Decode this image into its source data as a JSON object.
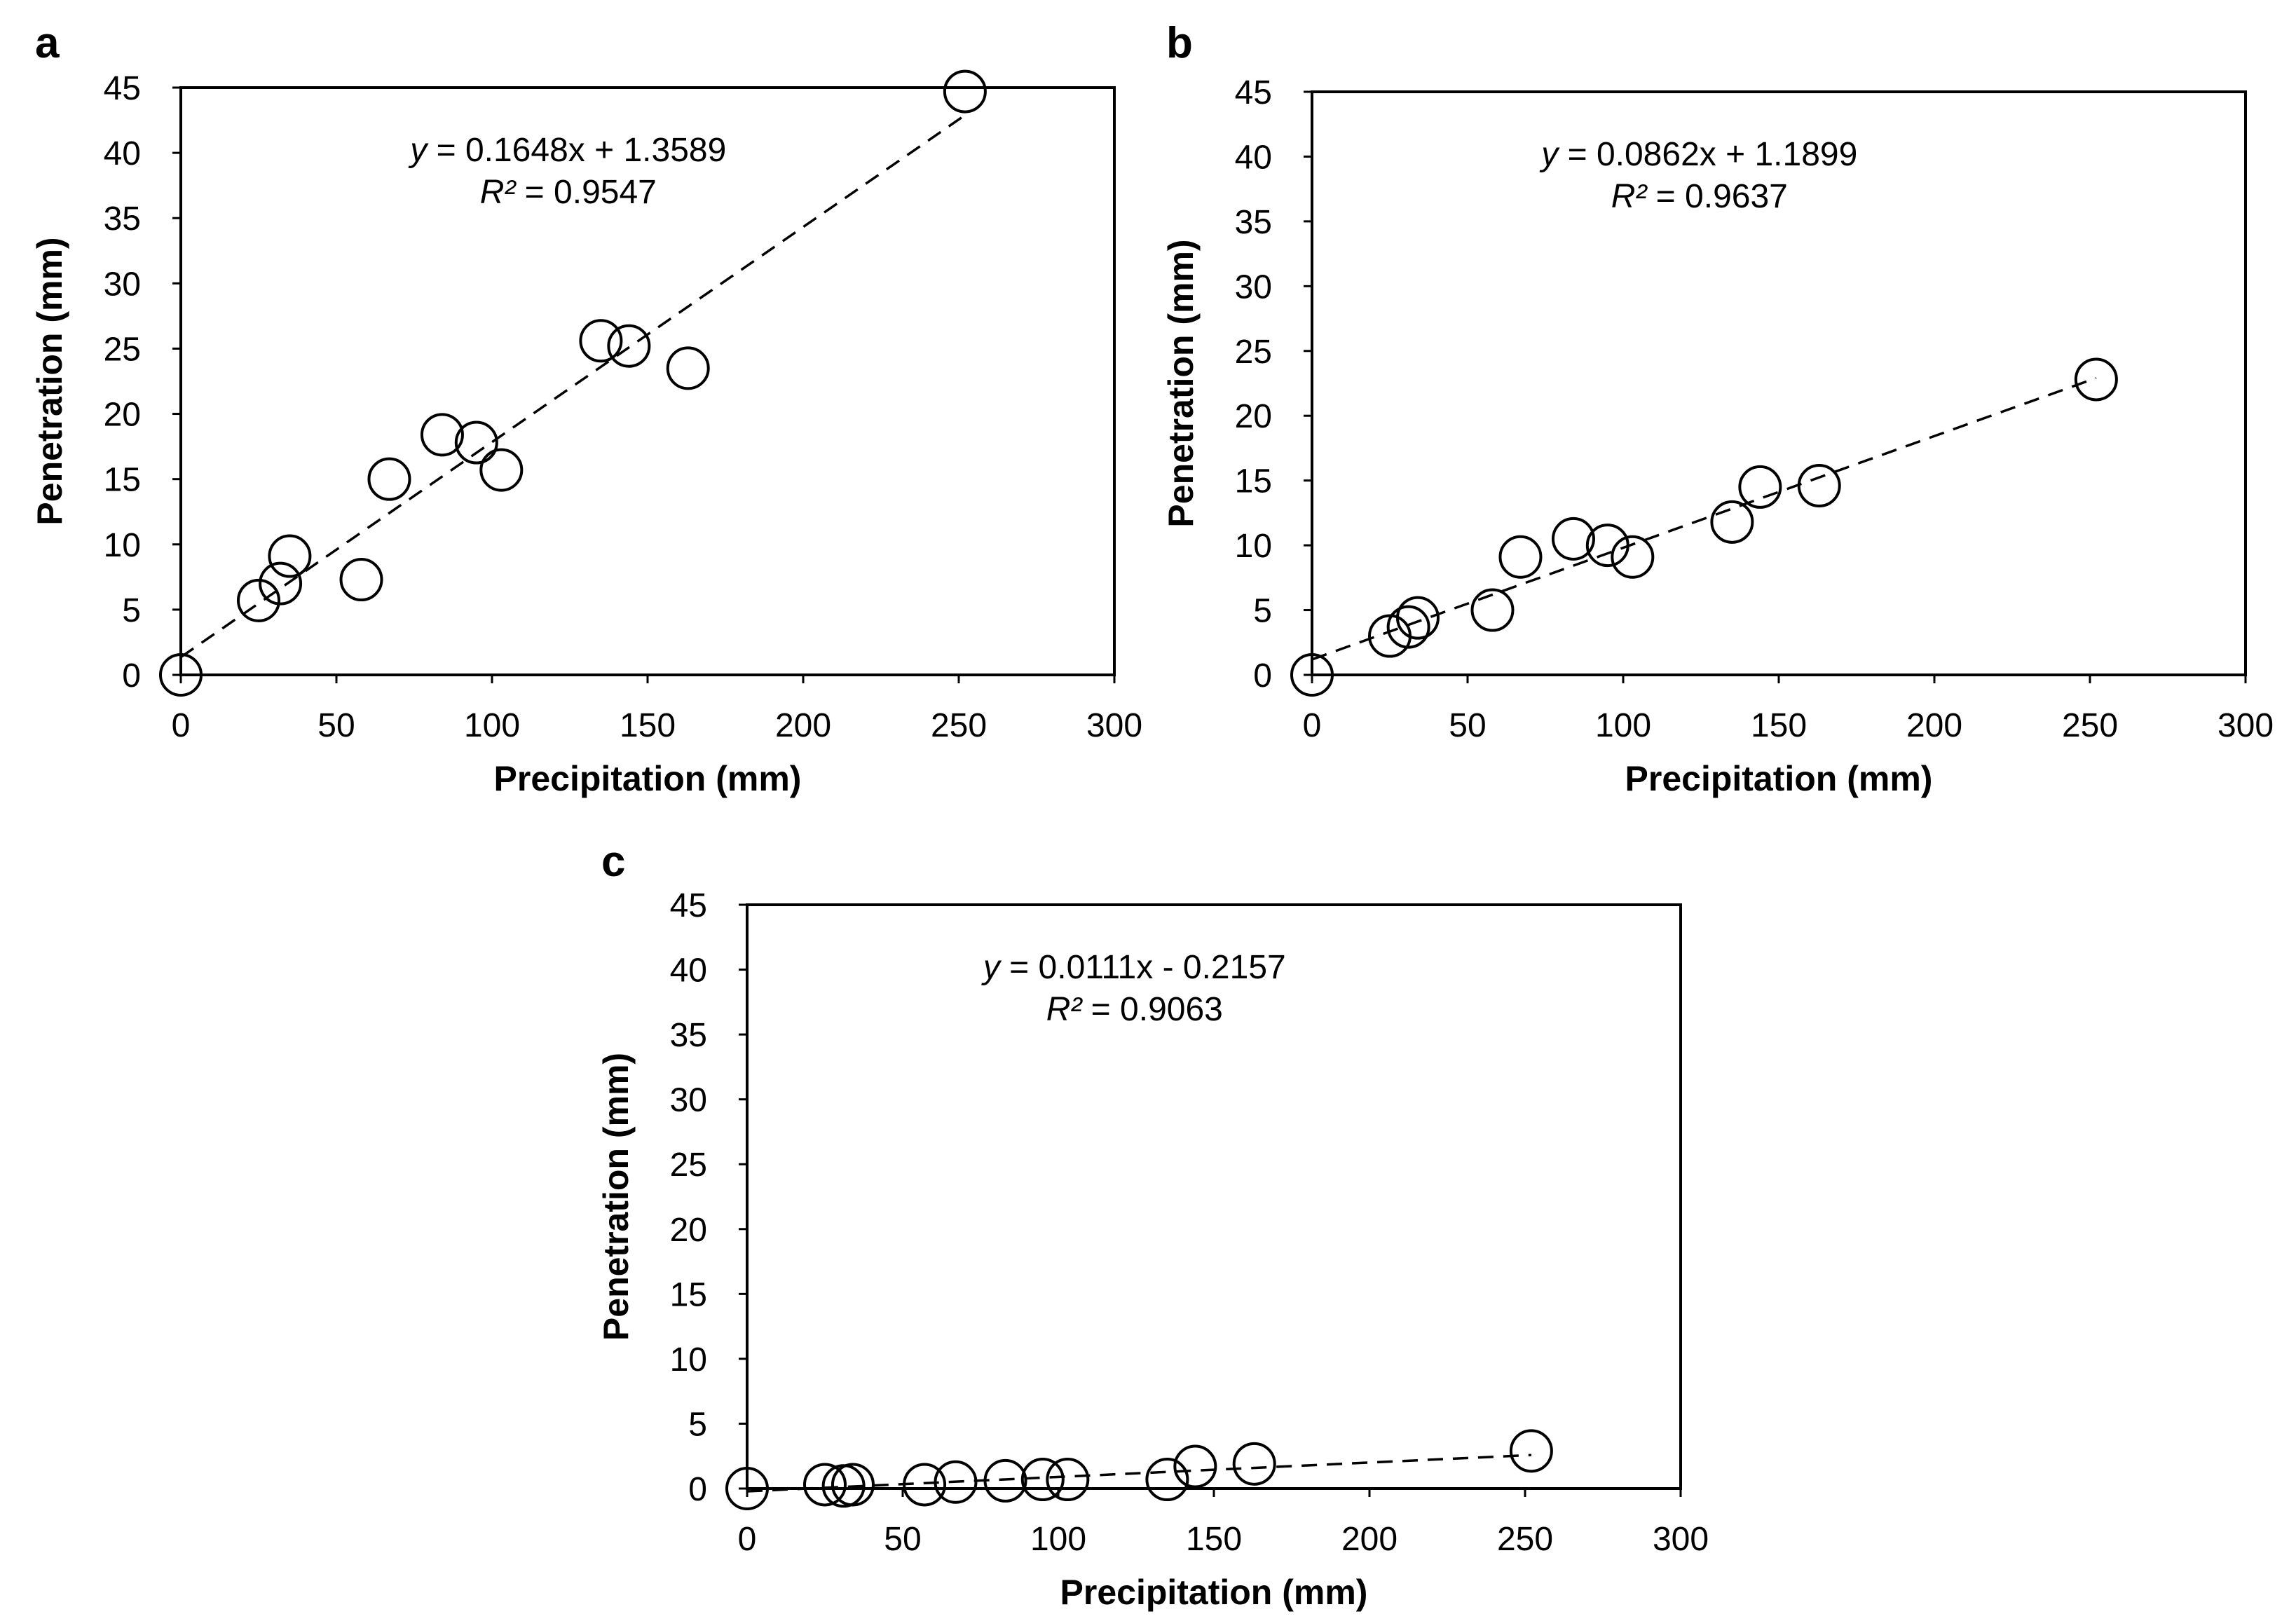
{
  "chart_data": [
    {
      "type": "scatter",
      "panel": "a",
      "title": "",
      "xlabel": "Precipitation (mm)",
      "ylabel": "Penetration (mm)",
      "xlim": [
        0,
        300
      ],
      "ylim": [
        0,
        45
      ],
      "xticks": [
        0,
        50,
        100,
        150,
        200,
        250,
        300
      ],
      "yticks": [
        0,
        5,
        10,
        15,
        20,
        25,
        30,
        35,
        40,
        45
      ],
      "grid": false,
      "legend": "none",
      "points": [
        {
          "x": 0,
          "y": 0
        },
        {
          "x": 25,
          "y": 5.7
        },
        {
          "x": 32,
          "y": 7.0
        },
        {
          "x": 35,
          "y": 9.1
        },
        {
          "x": 58,
          "y": 7.3
        },
        {
          "x": 67,
          "y": 15.0
        },
        {
          "x": 84,
          "y": 18.4
        },
        {
          "x": 95,
          "y": 17.8
        },
        {
          "x": 103,
          "y": 15.7
        },
        {
          "x": 135,
          "y": 25.6
        },
        {
          "x": 144,
          "y": 25.2
        },
        {
          "x": 163,
          "y": 23.5
        },
        {
          "x": 252,
          "y": 44.7
        }
      ],
      "trendline": {
        "slope": 0.1648,
        "intercept": 1.3589,
        "x_range": [
          0,
          252
        ]
      },
      "equation_prefix": "y",
      "equation_body": " = 0.1648x + 1.3589",
      "r2_prefix": "R²",
      "r2_body": " = 0.9547"
    },
    {
      "type": "scatter",
      "panel": "b",
      "title": "",
      "xlabel": "Precipitation (mm)",
      "ylabel": "Penetration (mm)",
      "xlim": [
        0,
        300
      ],
      "ylim": [
        0,
        45
      ],
      "xticks": [
        0,
        50,
        100,
        150,
        200,
        250,
        300
      ],
      "yticks": [
        0,
        5,
        10,
        15,
        20,
        25,
        30,
        35,
        40,
        45
      ],
      "grid": false,
      "legend": "none",
      "points": [
        {
          "x": 0,
          "y": 0
        },
        {
          "x": 25,
          "y": 3.0
        },
        {
          "x": 31,
          "y": 3.7
        },
        {
          "x": 34,
          "y": 4.4
        },
        {
          "x": 58,
          "y": 5.0
        },
        {
          "x": 67,
          "y": 9.1
        },
        {
          "x": 84,
          "y": 10.5
        },
        {
          "x": 95,
          "y": 10.0
        },
        {
          "x": 103,
          "y": 9.1
        },
        {
          "x": 135,
          "y": 11.8
        },
        {
          "x": 144,
          "y": 14.5
        },
        {
          "x": 163,
          "y": 14.6
        },
        {
          "x": 252,
          "y": 22.8
        }
      ],
      "trendline": {
        "slope": 0.0862,
        "intercept": 1.1899,
        "x_range": [
          0,
          252
        ]
      },
      "equation_prefix": "y",
      "equation_body": " = 0.0862x + 1.1899",
      "r2_prefix": "R²",
      "r2_body": " = 0.9637"
    },
    {
      "type": "scatter",
      "panel": "c",
      "title": "",
      "xlabel": "Precipitation (mm)",
      "ylabel": "Penetration (mm)",
      "xlim": [
        0,
        300
      ],
      "ylim": [
        0,
        45
      ],
      "xticks": [
        0,
        50,
        100,
        150,
        200,
        250,
        300
      ],
      "yticks": [
        0,
        5,
        10,
        15,
        20,
        25,
        30,
        35,
        40,
        45
      ],
      "grid": false,
      "legend": "none",
      "points": [
        {
          "x": 0,
          "y": 0
        },
        {
          "x": 25,
          "y": 0.3
        },
        {
          "x": 31,
          "y": 0.2
        },
        {
          "x": 34,
          "y": 0.3
        },
        {
          "x": 57,
          "y": 0.3
        },
        {
          "x": 67,
          "y": 0.5
        },
        {
          "x": 83,
          "y": 0.6
        },
        {
          "x": 95,
          "y": 0.7
        },
        {
          "x": 103,
          "y": 0.7
        },
        {
          "x": 135,
          "y": 0.7
        },
        {
          "x": 144,
          "y": 1.7
        },
        {
          "x": 163,
          "y": 1.9
        },
        {
          "x": 252,
          "y": 2.9
        }
      ],
      "trendline": {
        "slope": 0.0111,
        "intercept": -0.2157,
        "x_range": [
          0,
          252
        ]
      },
      "equation_prefix": "y",
      "equation_body": " = 0.0111x - 0.2157",
      "r2_prefix": "R²",
      "r2_body": " = 0.9063"
    }
  ]
}
